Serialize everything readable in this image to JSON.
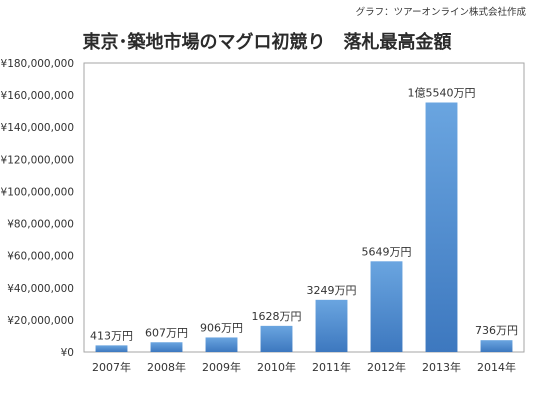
{
  "credit": "グラフ：ツアーオンライン株式会社作成",
  "chart_data": {
    "type": "bar",
    "title": "東京･築地市場のマグロ初競り　落札最高金額",
    "categories": [
      "2007年",
      "2008年",
      "2009年",
      "2010年",
      "2011年",
      "2012年",
      "2013年",
      "2014年"
    ],
    "values": [
      4130000,
      6070000,
      9060000,
      16280000,
      32490000,
      56490000,
      155400000,
      7360000
    ],
    "data_labels": [
      "413万円",
      "607万円",
      "906万円",
      "1628万円",
      "3249万円",
      "5649万円",
      "1億5540万円",
      "736万円"
    ],
    "ylim": [
      0,
      180000000
    ],
    "yticks": [
      0,
      20000000,
      40000000,
      60000000,
      80000000,
      100000000,
      120000000,
      140000000,
      160000000,
      180000000
    ],
    "ytick_labels": [
      "¥0",
      "¥20,000,000",
      "¥40,000,000",
      "¥60,000,000",
      "¥80,000,000",
      "¥100,000,000",
      "¥120,000,000",
      "¥140,000,000",
      "¥160,000,000",
      "¥180,000,000"
    ],
    "xlabel": "",
    "ylabel": "",
    "grid": false,
    "legend": "none",
    "colors": {
      "bar_top": "#6aa5e0",
      "bar_bottom": "#3d78bf",
      "frame": "#a6a6a6",
      "text": "#333333"
    }
  }
}
